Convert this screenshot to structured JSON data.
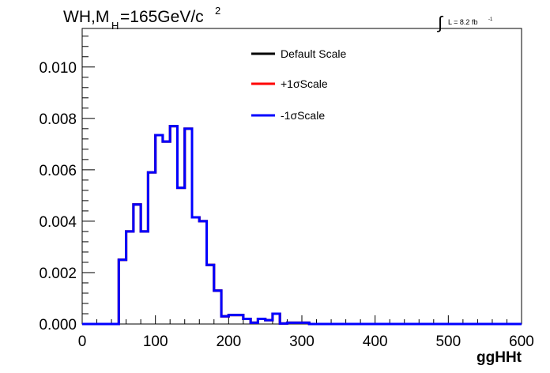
{
  "title": {
    "main": "WH,M",
    "sub": "H",
    "rest": "=165GeV/c",
    "sup": "2"
  },
  "lumi": {
    "integral": "∫",
    "text": "L = 8.2 fb",
    "sup": "-1"
  },
  "chart_data": {
    "type": "line",
    "xlabel": "ggHHt",
    "ylabel": "",
    "xlim": [
      0,
      600
    ],
    "ylim": [
      0,
      0.0115
    ],
    "x_ticks": [
      0,
      100,
      200,
      300,
      400,
      500,
      600
    ],
    "x_tick_labels": [
      "0",
      "100",
      "200",
      "300",
      "400",
      "500",
      "600"
    ],
    "y_ticks": [
      0,
      0.002,
      0.004,
      0.006,
      0.008,
      0.01
    ],
    "y_tick_labels": [
      "0.000",
      "0.002",
      "0.004",
      "0.006",
      "0.008",
      "0.010"
    ],
    "bin_edges": [
      0,
      10,
      20,
      30,
      40,
      50,
      60,
      70,
      80,
      90,
      100,
      110,
      120,
      130,
      140,
      150,
      160,
      170,
      180,
      190,
      200,
      210,
      220,
      230,
      240,
      250,
      260,
      270,
      280,
      290,
      300,
      310,
      320,
      330,
      340,
      350,
      360,
      370,
      380,
      390,
      400,
      410,
      420,
      430,
      440,
      450,
      460,
      470,
      480,
      490,
      500,
      510,
      520,
      530,
      540,
      550,
      560,
      570,
      580,
      590,
      600
    ],
    "series": [
      {
        "name": "Default Scale",
        "color": "#000000",
        "values": [
          0,
          0,
          0,
          0,
          0,
          0.0025,
          0.0036,
          0.00465,
          0.0036,
          0.0059,
          0.00735,
          0.0071,
          0.0077,
          0.0053,
          0.0076,
          0.00415,
          0.004,
          0.0023,
          0.0013,
          0.0003,
          0.00035,
          0.00035,
          0.0002,
          5e-05,
          0.0002,
          0.00015,
          0.0004,
          2e-05,
          5e-05,
          5e-05,
          5e-05,
          0,
          0,
          0,
          0,
          0,
          0,
          0,
          0,
          0,
          0,
          0,
          0,
          0,
          0,
          0,
          0,
          0,
          0,
          0,
          0,
          0,
          0,
          0,
          0,
          0,
          0,
          0,
          0,
          0
        ]
      },
      {
        "name": "+1σScale",
        "color": "#ff0000",
        "values": [
          0,
          0,
          0,
          0,
          0,
          0.0025,
          0.0036,
          0.00465,
          0.0036,
          0.0059,
          0.00735,
          0.0071,
          0.0077,
          0.0053,
          0.0076,
          0.00415,
          0.004,
          0.0023,
          0.0013,
          0.0003,
          0.00035,
          0.00035,
          0.0002,
          5e-05,
          0.0002,
          0.00015,
          0.0004,
          2e-05,
          5e-05,
          5e-05,
          5e-05,
          0,
          0,
          0,
          0,
          0,
          0,
          0,
          0,
          0,
          0,
          0,
          0,
          0,
          0,
          0,
          0,
          0,
          0,
          0,
          0,
          0,
          0,
          0,
          0,
          0,
          0,
          0,
          0,
          0
        ]
      },
      {
        "name": "-1σScale",
        "color": "#0000ff",
        "values": [
          0,
          0,
          0,
          0,
          0,
          0.0025,
          0.0036,
          0.00465,
          0.0036,
          0.0059,
          0.00735,
          0.0071,
          0.0077,
          0.0053,
          0.0076,
          0.00415,
          0.004,
          0.0023,
          0.0013,
          0.0003,
          0.00035,
          0.00035,
          0.0002,
          5e-05,
          0.0002,
          0.00015,
          0.0004,
          2e-05,
          5e-05,
          5e-05,
          5e-05,
          0,
          0,
          0,
          0,
          0,
          0,
          0,
          0,
          0,
          0,
          0,
          0,
          0,
          0,
          0,
          0,
          0,
          0,
          0,
          0,
          0,
          0,
          0,
          0,
          0,
          0,
          0,
          0,
          0
        ]
      }
    ],
    "legend_position": "top-center",
    "grid": false
  }
}
